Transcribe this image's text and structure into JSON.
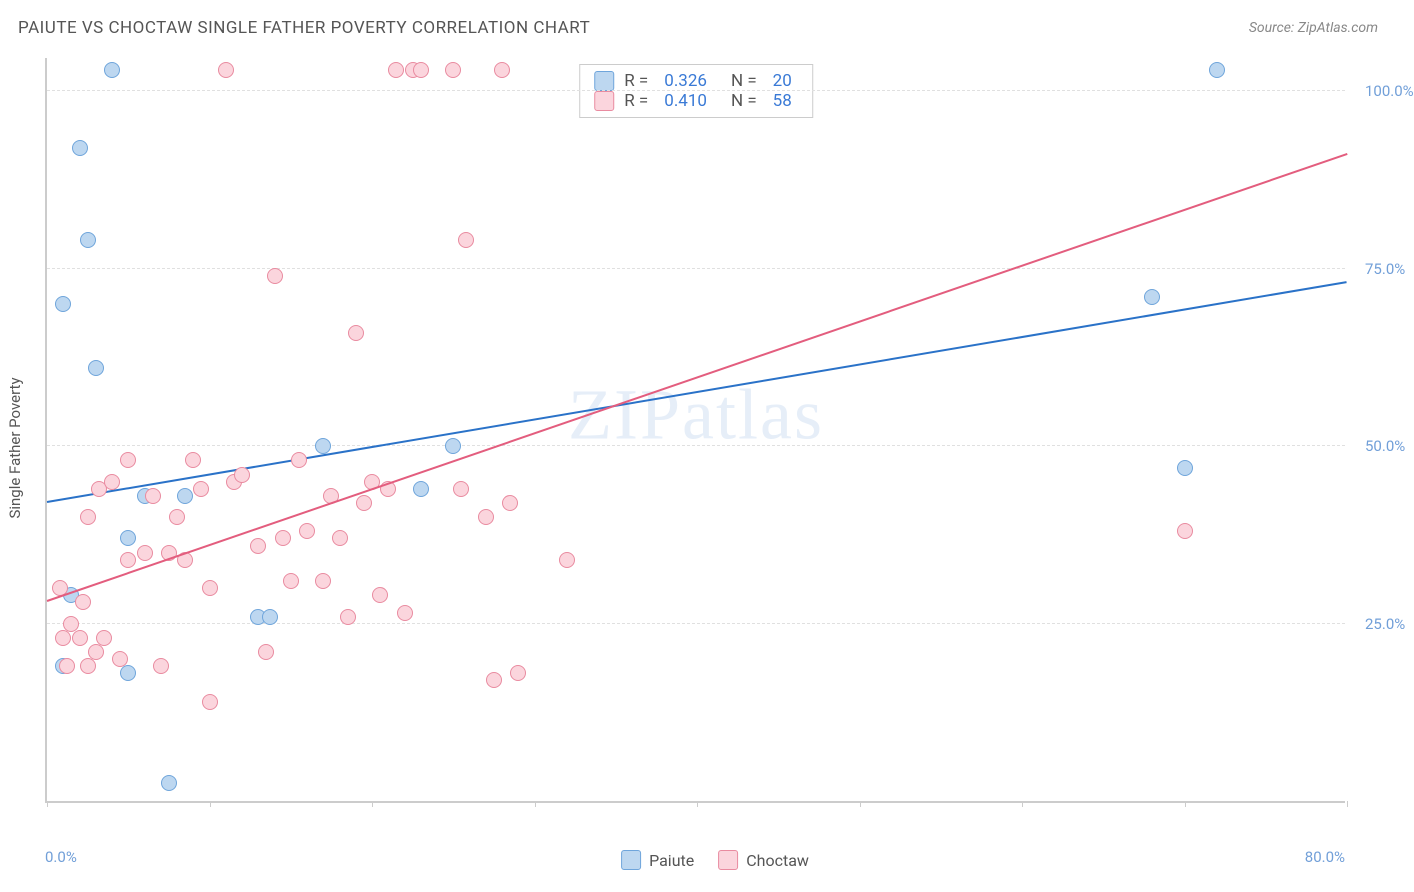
{
  "title": "PAIUTE VS CHOCTAW SINGLE FATHER POVERTY CORRELATION CHART",
  "source": "Source: ZipAtlas.com",
  "watermark": {
    "z": "ZIP",
    "rest": "atlas"
  },
  "y_axis_title": "Single Father Poverty",
  "chart": {
    "type": "scatter",
    "xlim": [
      0,
      80
    ],
    "ylim": [
      0,
      105
    ],
    "background_color": "#ffffff",
    "grid_color": "#e0e0e0",
    "axis_color": "#cccccc",
    "y_gridlines": [
      25,
      50,
      75,
      100
    ],
    "y_tick_labels": [
      "25.0%",
      "50.0%",
      "75.0%",
      "100.0%"
    ],
    "x_tick_positions": [
      0,
      10,
      20,
      30,
      40,
      50,
      60,
      70,
      80
    ],
    "x_label_start": "0.0%",
    "x_label_end": "80.0%",
    "point_radius": 8,
    "series": [
      {
        "name": "Paiute",
        "label": "Paiute",
        "fill": "#bdd7f0",
        "stroke": "#6fa5db",
        "line_color": "#2a72c8",
        "R_label": "R =",
        "R": "0.326",
        "N_label": "N =",
        "N": "20",
        "trend": {
          "x1": 0,
          "y1": 42,
          "x2": 80,
          "y2": 73
        },
        "points": [
          {
            "x": 1.5,
            "y": 29
          },
          {
            "x": 2,
            "y": 92
          },
          {
            "x": 1,
            "y": 70
          },
          {
            "x": 2.5,
            "y": 79
          },
          {
            "x": 3,
            "y": 61
          },
          {
            "x": 4,
            "y": 103
          },
          {
            "x": 5,
            "y": 37
          },
          {
            "x": 5,
            "y": 18
          },
          {
            "x": 6,
            "y": 43
          },
          {
            "x": 7.5,
            "y": 2.5
          },
          {
            "x": 8.5,
            "y": 43
          },
          {
            "x": 13,
            "y": 26
          },
          {
            "x": 13.7,
            "y": 26
          },
          {
            "x": 17,
            "y": 50
          },
          {
            "x": 23,
            "y": 44
          },
          {
            "x": 25,
            "y": 50
          },
          {
            "x": 68,
            "y": 71
          },
          {
            "x": 70,
            "y": 47
          },
          {
            "x": 72,
            "y": 103
          },
          {
            "x": 1,
            "y": 19
          }
        ]
      },
      {
        "name": "Choctaw",
        "label": "Choctaw",
        "fill": "#fbd5dd",
        "stroke": "#e98ba0",
        "line_color": "#e35d7e",
        "R_label": "R =",
        "R": "0.410",
        "N_label": "N =",
        "N": "58",
        "trend": {
          "x1": 0,
          "y1": 28,
          "x2": 80,
          "y2": 91
        },
        "points": [
          {
            "x": 0.8,
            "y": 30
          },
          {
            "x": 1,
            "y": 23
          },
          {
            "x": 1.2,
            "y": 19
          },
          {
            "x": 1.5,
            "y": 25
          },
          {
            "x": 2,
            "y": 23
          },
          {
            "x": 2.2,
            "y": 28
          },
          {
            "x": 2.5,
            "y": 40
          },
          {
            "x": 2.5,
            "y": 19
          },
          {
            "x": 3,
            "y": 21
          },
          {
            "x": 3.2,
            "y": 44
          },
          {
            "x": 3.5,
            "y": 23
          },
          {
            "x": 4,
            "y": 45
          },
          {
            "x": 4.5,
            "y": 20
          },
          {
            "x": 5,
            "y": 48
          },
          {
            "x": 5,
            "y": 34
          },
          {
            "x": 6,
            "y": 35
          },
          {
            "x": 6.5,
            "y": 43
          },
          {
            "x": 7,
            "y": 19
          },
          {
            "x": 7.5,
            "y": 35
          },
          {
            "x": 8,
            "y": 40
          },
          {
            "x": 8.5,
            "y": 34
          },
          {
            "x": 9,
            "y": 48
          },
          {
            "x": 9.5,
            "y": 44
          },
          {
            "x": 10,
            "y": 30
          },
          {
            "x": 10,
            "y": 14
          },
          {
            "x": 11,
            "y": 103
          },
          {
            "x": 11.5,
            "y": 45
          },
          {
            "x": 12,
            "y": 46
          },
          {
            "x": 13,
            "y": 36
          },
          {
            "x": 13.5,
            "y": 21
          },
          {
            "x": 14,
            "y": 74
          },
          {
            "x": 14.5,
            "y": 37
          },
          {
            "x": 15,
            "y": 31
          },
          {
            "x": 15.5,
            "y": 48
          },
          {
            "x": 16,
            "y": 38
          },
          {
            "x": 17,
            "y": 31
          },
          {
            "x": 17.5,
            "y": 43
          },
          {
            "x": 18,
            "y": 37
          },
          {
            "x": 18.5,
            "y": 26
          },
          {
            "x": 19,
            "y": 66
          },
          {
            "x": 19.5,
            "y": 42
          },
          {
            "x": 20,
            "y": 45
          },
          {
            "x": 20.5,
            "y": 29
          },
          {
            "x": 21,
            "y": 44
          },
          {
            "x": 21.5,
            "y": 103
          },
          {
            "x": 22,
            "y": 26.5
          },
          {
            "x": 22.5,
            "y": 103
          },
          {
            "x": 23,
            "y": 103
          },
          {
            "x": 25,
            "y": 103
          },
          {
            "x": 25.5,
            "y": 44
          },
          {
            "x": 25.8,
            "y": 79
          },
          {
            "x": 27,
            "y": 40
          },
          {
            "x": 27.5,
            "y": 17
          },
          {
            "x": 28,
            "y": 103
          },
          {
            "x": 28.5,
            "y": 42
          },
          {
            "x": 29,
            "y": 18
          },
          {
            "x": 32,
            "y": 34
          },
          {
            "x": 70,
            "y": 38
          }
        ]
      }
    ]
  },
  "legend": [
    {
      "label": "Paiute",
      "fill": "#bdd7f0",
      "stroke": "#6fa5db"
    },
    {
      "label": "Choctaw",
      "fill": "#fbd5dd",
      "stroke": "#e98ba0"
    }
  ]
}
